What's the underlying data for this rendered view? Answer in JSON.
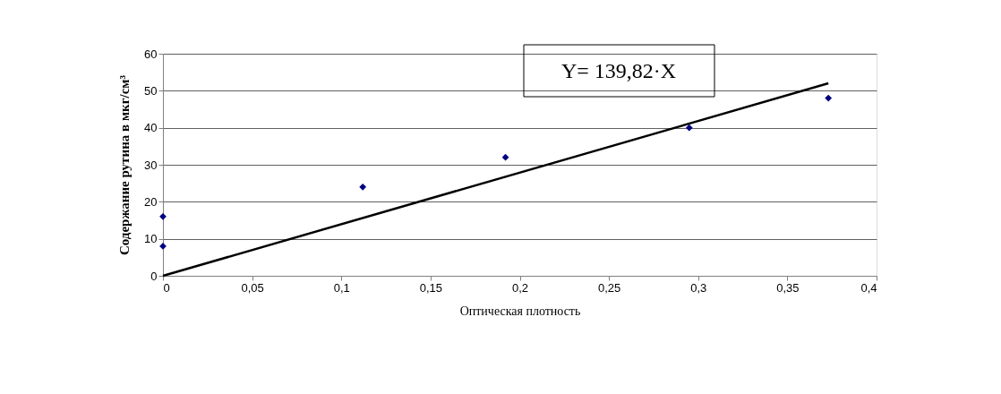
{
  "chart_data": {
    "type": "scatter",
    "xlabel": "Оптическая плотность",
    "ylabel": "Содержание рутина в мкг/см³",
    "annotations": [
      "Y= 139,82·X"
    ],
    "series": [
      {
        "color": "#000080",
        "marker": "diamond",
        "x": [
          0,
          0,
          0.112,
          0.192,
          0.295,
          0.373
        ],
        "values": [
          16,
          8,
          24,
          32,
          40,
          48
        ]
      },
      {
        "type": "line",
        "color": "#000000",
        "line_style": "solid",
        "marker": "none",
        "x": [
          0,
          0.373
        ],
        "values": [
          0,
          52
        ]
      }
    ],
    "xlim": [
      0,
      0.4
    ],
    "xticks": [
      {
        "value": 0,
        "label": "0"
      },
      {
        "value": 0.05,
        "label": "0,05"
      },
      {
        "value": 0.1,
        "label": "0,1"
      },
      {
        "value": 0.15,
        "label": "0,15"
      },
      {
        "value": 0.2,
        "label": "0,2"
      },
      {
        "value": 0.25,
        "label": "0,25"
      },
      {
        "value": 0.3,
        "label": "0,3"
      },
      {
        "value": 0.35,
        "label": "0,35"
      },
      {
        "value": 0.4,
        "label": "0,4"
      }
    ],
    "ylim": [
      0,
      60
    ],
    "yticks": [
      0,
      10,
      20,
      30,
      40,
      50,
      60
    ],
    "grid": "y"
  }
}
